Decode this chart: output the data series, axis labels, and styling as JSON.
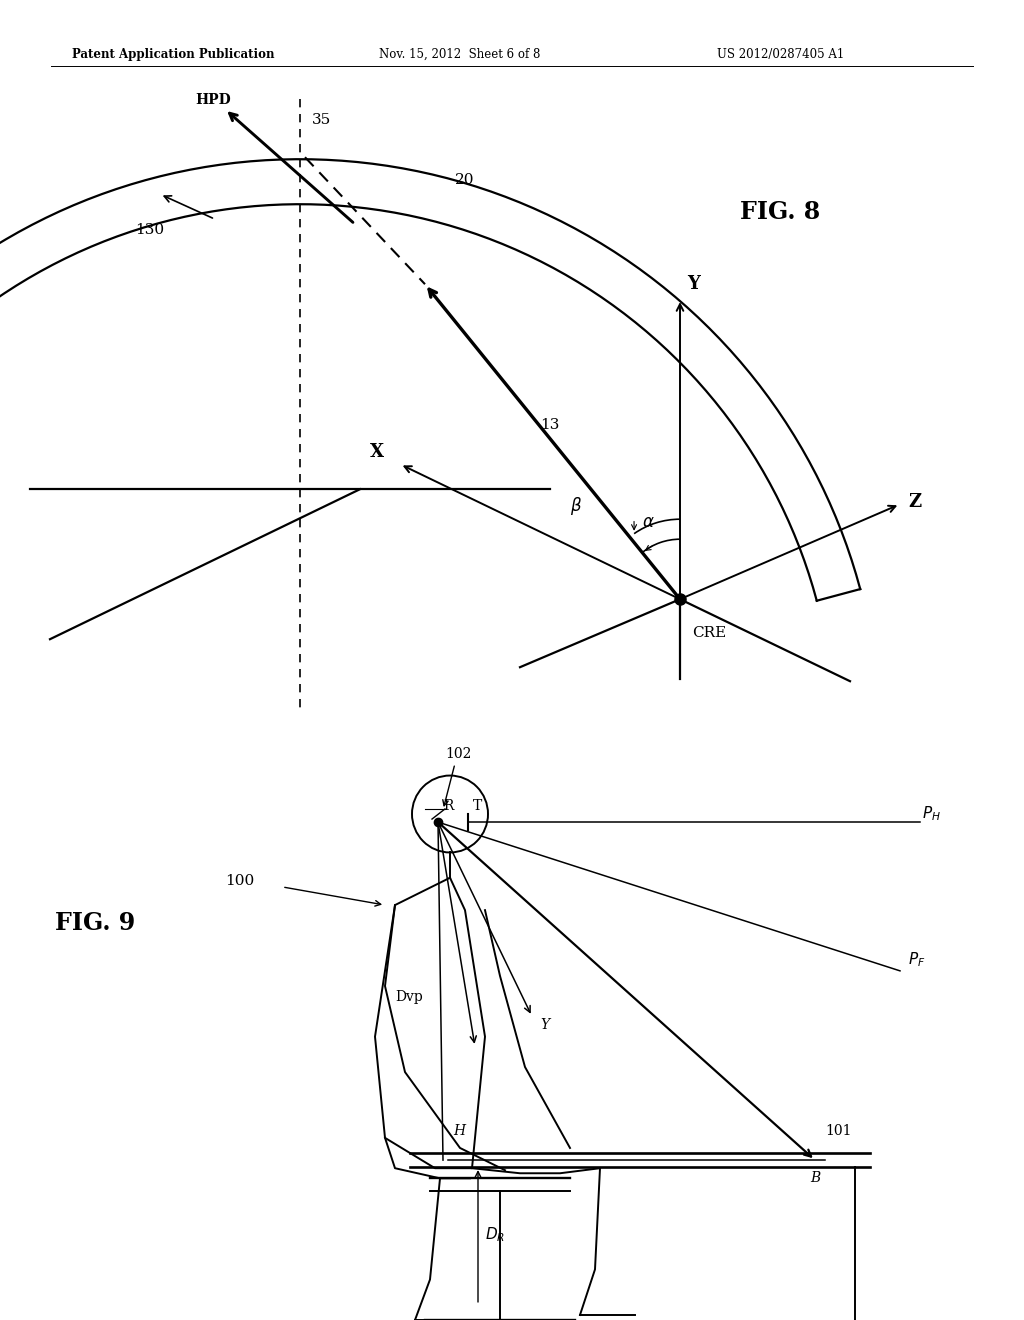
{
  "bg_color": "#ffffff",
  "header_left": "Patent Application Publication",
  "header_center": "Nov. 15, 2012  Sheet 6 of 8",
  "header_right": "US 2012/0287405 A1"
}
